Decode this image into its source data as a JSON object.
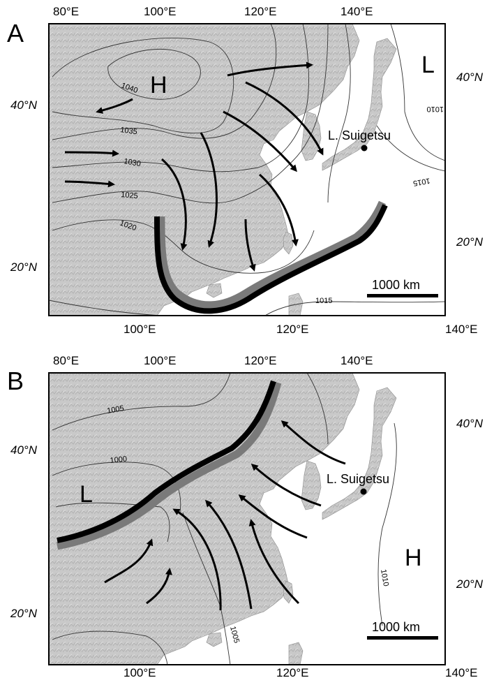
{
  "panels": [
    {
      "letter": "A",
      "top_lon": [
        "80°E",
        "100°E",
        "120°E",
        "140°E"
      ],
      "bottom_lon": [
        "100°E",
        "120°E",
        "140°E"
      ],
      "left_lat": [
        "40°N",
        "20°N"
      ],
      "right_lat": [
        "40°N",
        "20°N"
      ],
      "high_label": "H",
      "low_label": "L",
      "site_label": "L. Suigetsu",
      "scale_label": "1000 km",
      "isobars": [
        "1040",
        "1035",
        "1030",
        "1025",
        "1020",
        "1010",
        "1015",
        "1015"
      ]
    },
    {
      "letter": "B",
      "top_lon": [
        "80°E",
        "100°E",
        "120°E",
        "140°E"
      ],
      "bottom_lon": [
        "100°E",
        "120°E",
        "140°E"
      ],
      "left_lat": [
        "40°N",
        "20°N"
      ],
      "right_lat": [
        "40°N",
        "20°N"
      ],
      "low_label": "L",
      "high_label": "H",
      "site_label": "L. Suigetsu",
      "scale_label": "1000 km",
      "isobars": [
        "1005",
        "1000",
        "1010",
        "1005"
      ]
    }
  ],
  "colors": {
    "land": "#c8c8c8",
    "sea": "#ffffff",
    "front_dark": "#000000",
    "front_grey": "#7a7a7a",
    "isobar": "#333333"
  }
}
